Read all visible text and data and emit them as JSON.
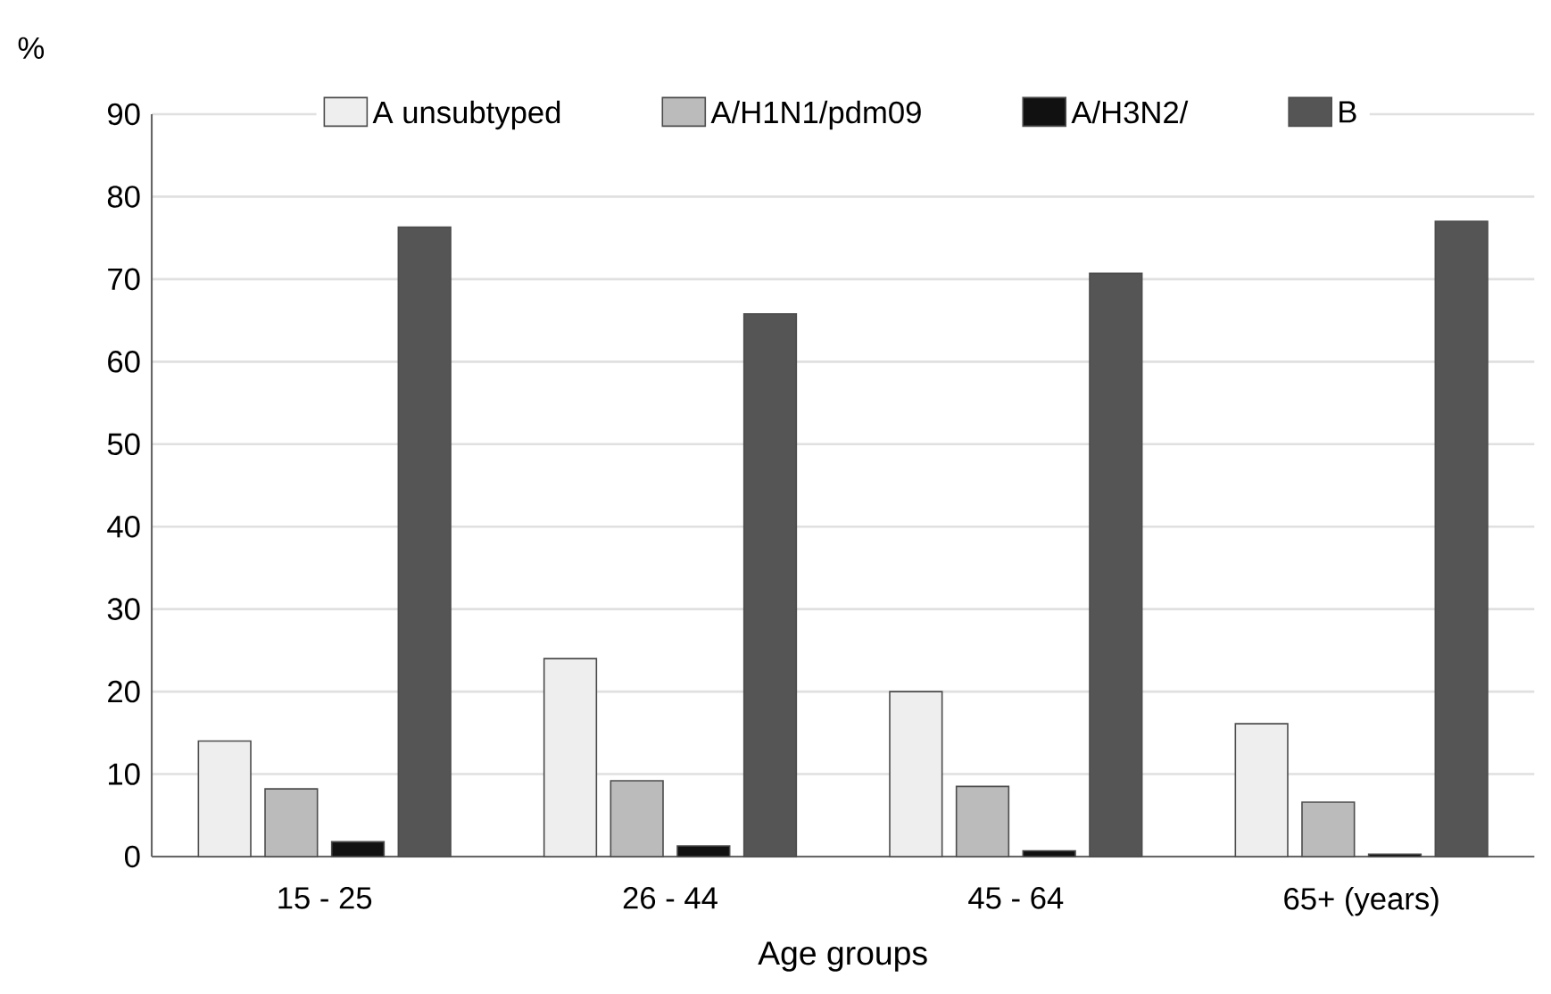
{
  "chart_data": {
    "type": "bar",
    "ylabel": "%",
    "xlabel": "Age groups",
    "categories": [
      "15 - 25",
      "26 - 44",
      "45 - 64",
      "65+ (years)"
    ],
    "series": [
      {
        "name": "A unsubtyped",
        "color": "#eeeeee",
        "values": [
          14,
          24,
          20,
          16.1
        ]
      },
      {
        "name": "A/H1N1/pdm09",
        "color": "#bbbbbb",
        "values": [
          8.2,
          9.2,
          8.5,
          6.6
        ]
      },
      {
        "name": "A/H3N2/",
        "color": "#111111",
        "values": [
          1.8,
          1.3,
          0.7,
          0.3
        ]
      },
      {
        "name": "B",
        "color": "#555555",
        "values": [
          76.3,
          65.8,
          70.7,
          77
        ]
      }
    ],
    "ylim": [
      0,
      90
    ],
    "yticks": [
      0,
      10,
      20,
      30,
      40,
      50,
      60,
      70,
      80,
      90
    ],
    "grid": "y",
    "legend": "top"
  }
}
